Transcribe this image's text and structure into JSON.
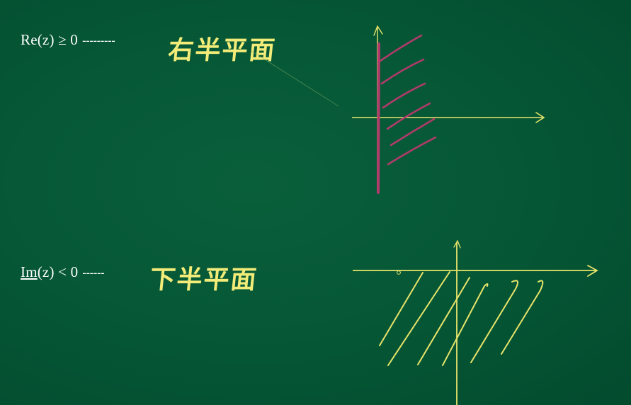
{
  "rows": [
    {
      "formula_re": "Re",
      "formula_paren": "(z) ≥ 0",
      "dashes": "---------",
      "label": "右半平面"
    },
    {
      "formula_re": "Im",
      "formula_paren": "(z) < 0",
      "dashes": "------",
      "label": "下半平面"
    }
  ],
  "colors": {
    "board": "#055635",
    "axis": "#e8e46a",
    "hatch_right": "#b23a6b",
    "hatch_lower": "#e8e46a",
    "chalk_text": "#f3ec78",
    "formula_text": "#ffffff"
  }
}
